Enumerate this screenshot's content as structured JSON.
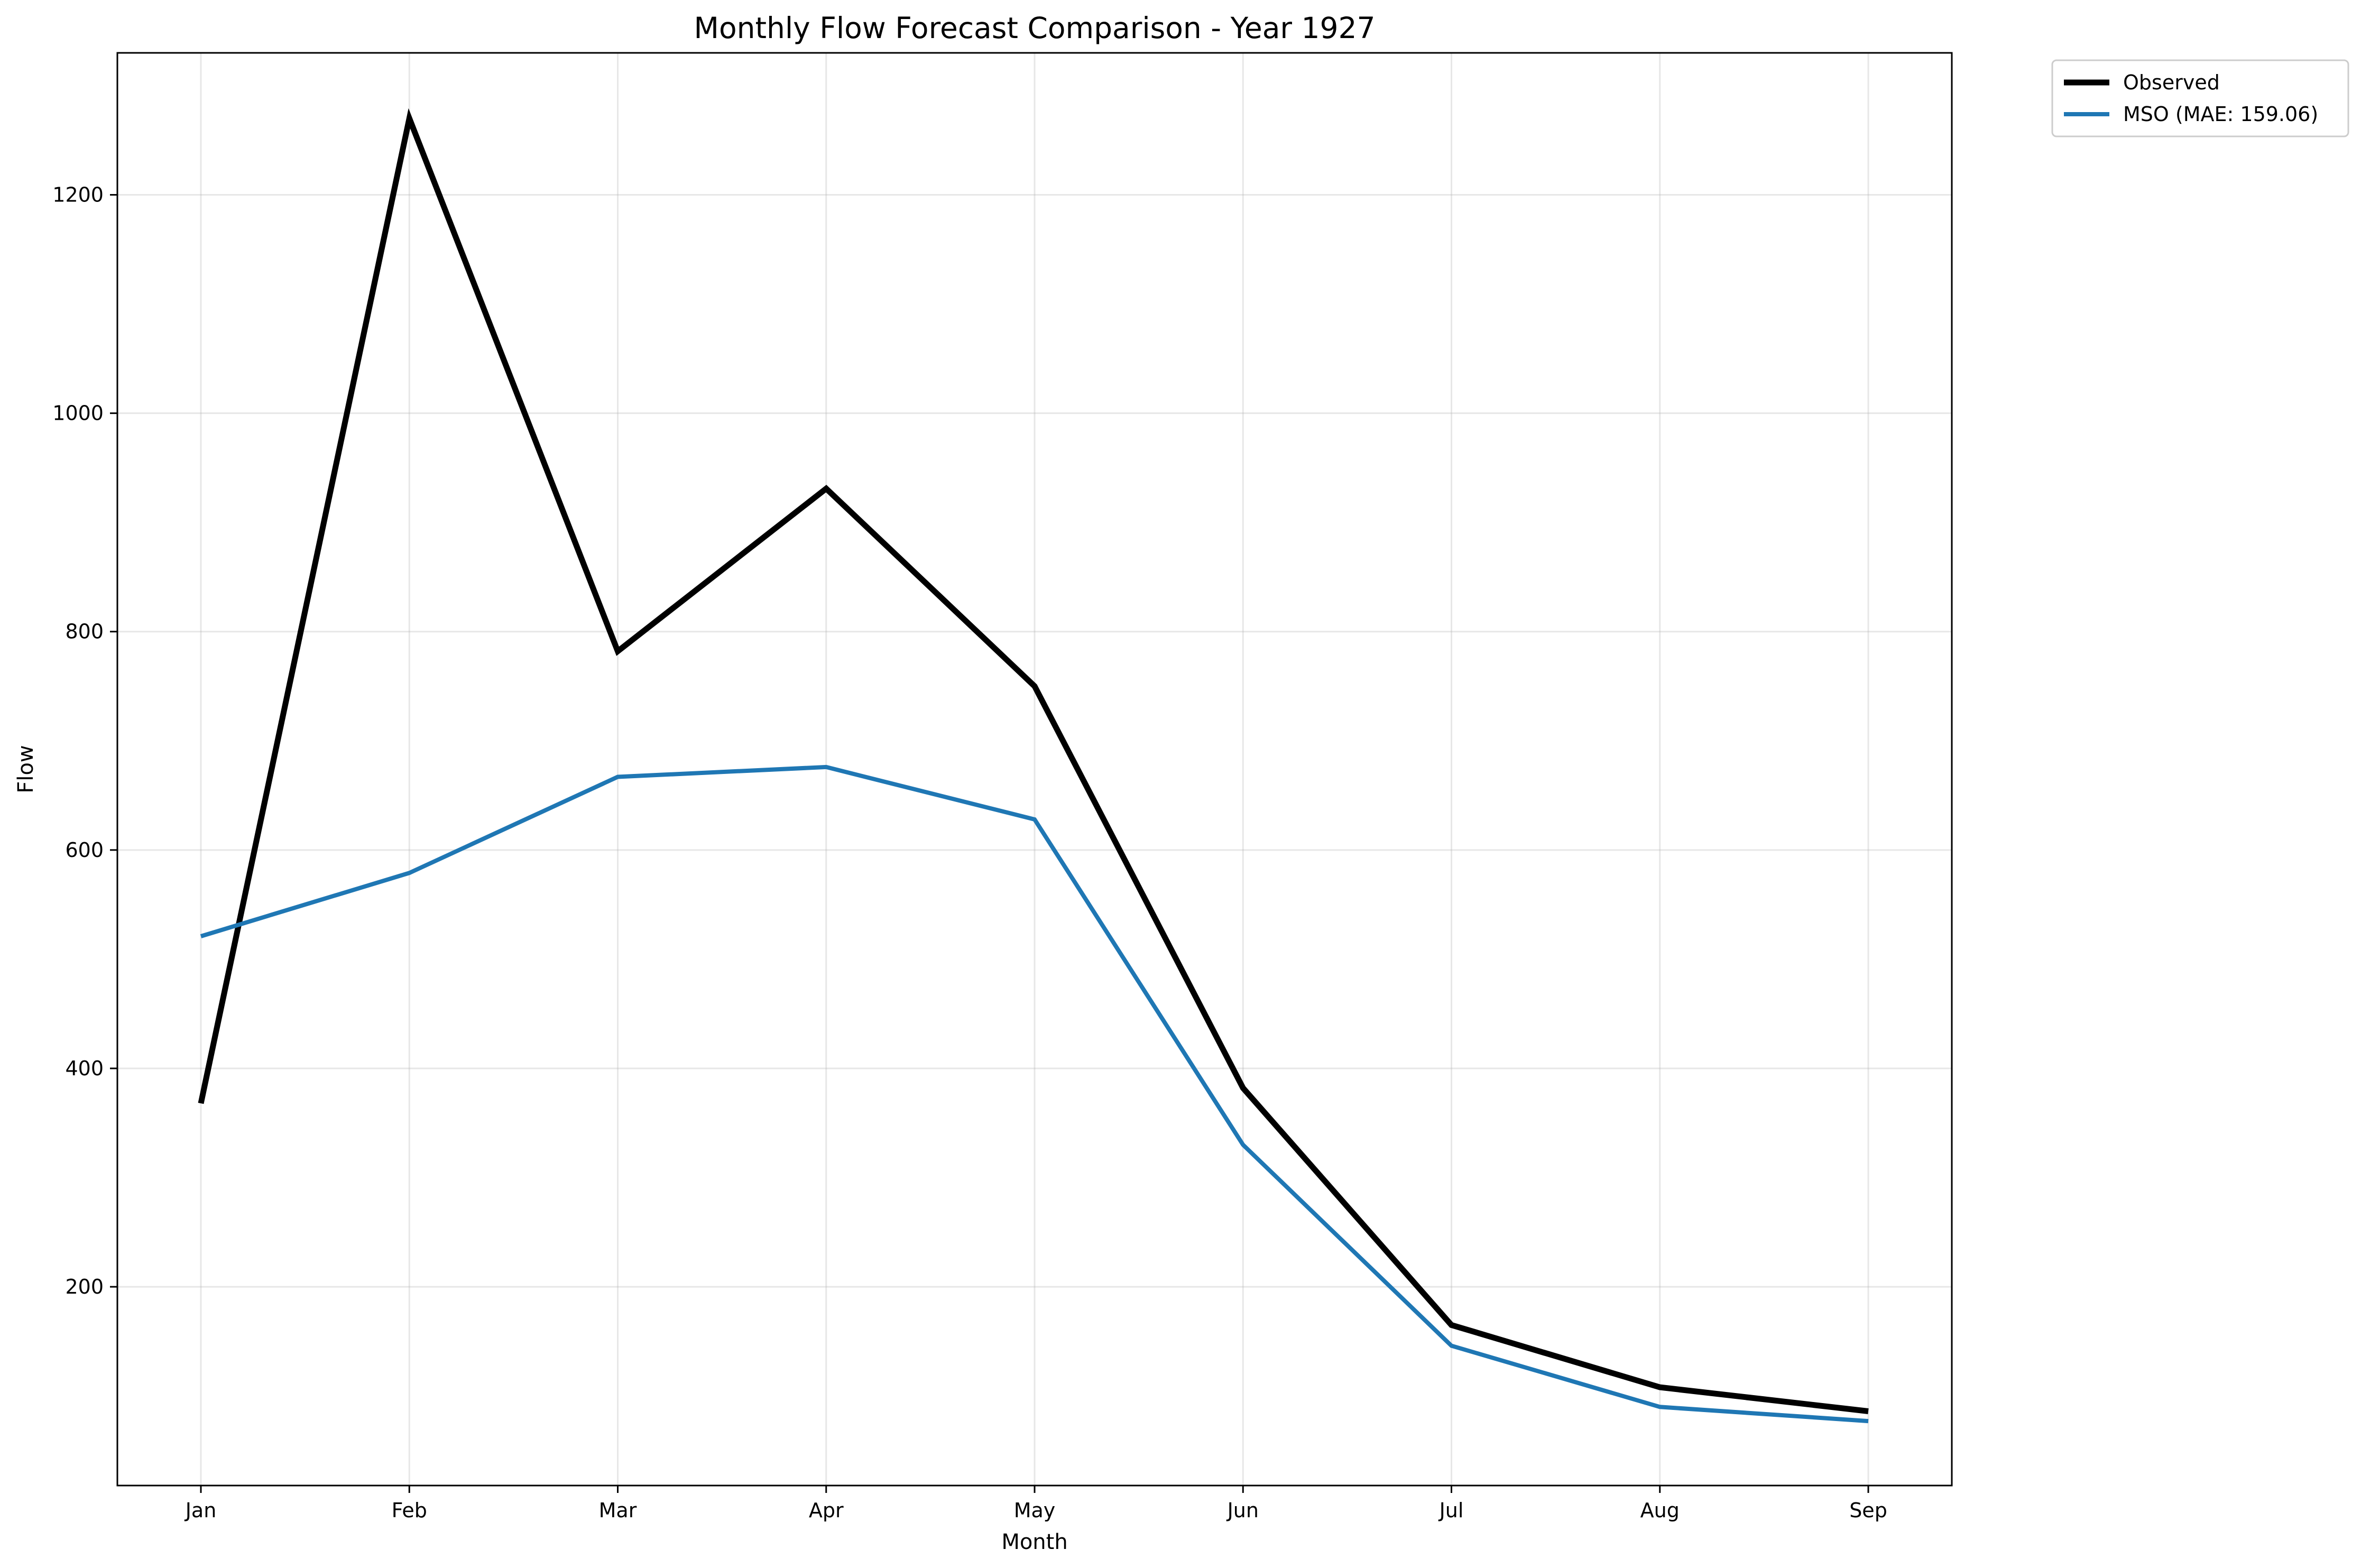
{
  "chart_data": {
    "type": "line",
    "title": "Monthly Flow Forecast Comparison - Year 1927",
    "xlabel": "Month",
    "ylabel": "Flow",
    "categories": [
      "Jan",
      "Feb",
      "Mar",
      "Apr",
      "May",
      "Jun",
      "Jul",
      "Aug",
      "Sep"
    ],
    "yticks": [
      200,
      400,
      600,
      800,
      1000,
      1200
    ],
    "ylim": [
      18,
      1330
    ],
    "grid": true,
    "legend_position": "outside-top-right",
    "series": [
      {
        "name": "Observed",
        "color": "#000000",
        "values": [
          368,
          1270,
          782,
          931,
          750,
          382,
          165,
          108,
          86
        ]
      },
      {
        "name": "MSO (MAE: 159.06)",
        "color": "#1f77b4",
        "values": [
          521,
          579,
          667,
          676,
          628,
          330,
          146,
          90,
          77
        ]
      }
    ]
  }
}
